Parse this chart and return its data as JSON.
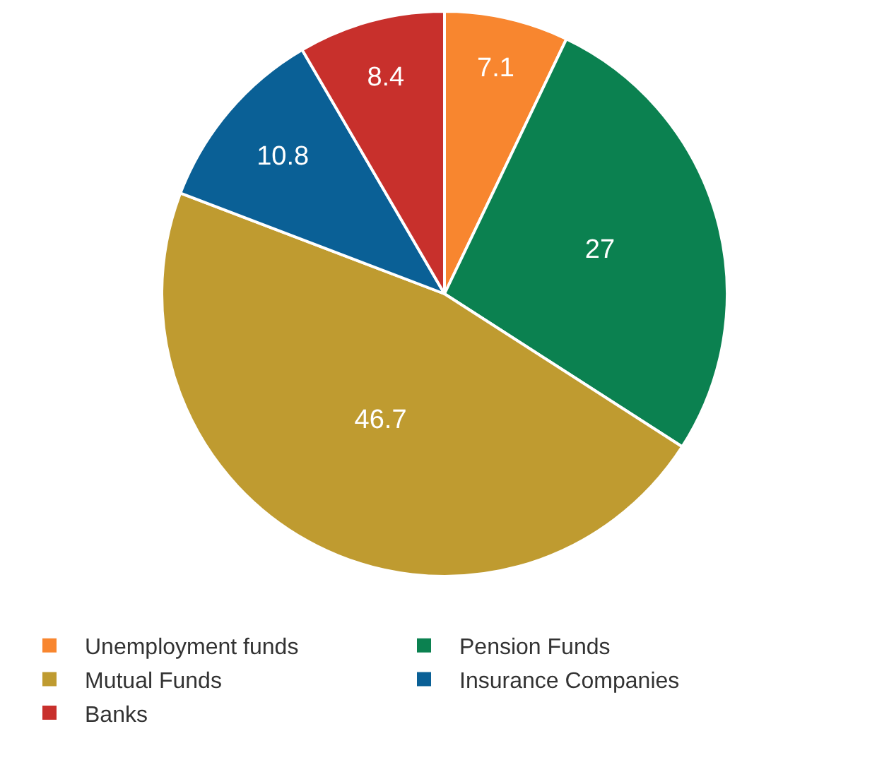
{
  "chart_data": {
    "type": "pie",
    "categories": [
      "Unemployment funds",
      "Pension Funds",
      "Mutual Funds",
      "Insurance Companies",
      "Banks"
    ],
    "values": [
      7.1,
      27,
      46.7,
      10.8,
      8.4
    ],
    "colors": [
      "#f8862f",
      "#0b8150",
      "#bf9b30",
      "#0a6096",
      "#c8302c"
    ],
    "data_labels": true,
    "legend": "bottom"
  }
}
